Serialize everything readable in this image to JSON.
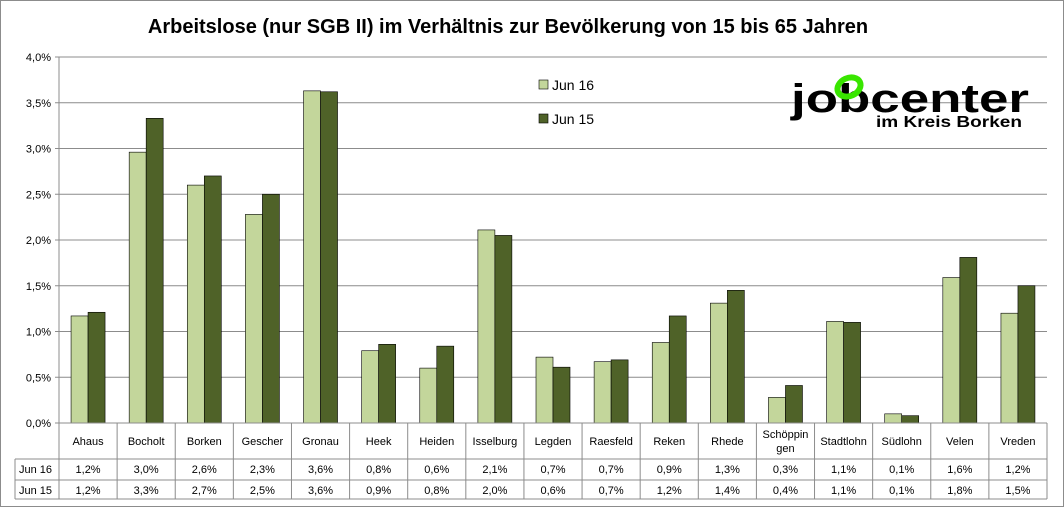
{
  "chart_data": {
    "type": "bar",
    "title": "Arbeitslose (nur SGB II) im Verhältnis zur Bevölkerung von 15 bis 65 Jahren",
    "categories": [
      "Ahaus",
      "Bocholt",
      "Borken",
      "Gescher",
      "Gronau",
      "Heek",
      "Heiden",
      "Isselburg",
      "Legden",
      "Raesfeld",
      "Reken",
      "Rhede",
      "Schöppin-gen",
      "Stadtlohn",
      "Südlohn",
      "Velen",
      "Vreden"
    ],
    "series": [
      {
        "name": "Jun 16",
        "color": "#c3d69b",
        "values": [
          1.17,
          2.96,
          2.6,
          2.28,
          3.63,
          0.79,
          0.6,
          2.11,
          0.72,
          0.67,
          0.88,
          1.31,
          0.28,
          1.11,
          0.1,
          1.59,
          1.2
        ],
        "labels": [
          "1,2%",
          "3,0%",
          "2,6%",
          "2,3%",
          "3,6%",
          "0,8%",
          "0,6%",
          "2,1%",
          "0,7%",
          "0,7%",
          "0,9%",
          "1,3%",
          "0,3%",
          "1,1%",
          "0,1%",
          "1,6%",
          "1,2%"
        ]
      },
      {
        "name": "Jun 15",
        "color": "#4f6228",
        "values": [
          1.21,
          3.33,
          2.7,
          2.5,
          3.62,
          0.86,
          0.84,
          2.05,
          0.61,
          0.69,
          1.17,
          1.45,
          0.41,
          1.1,
          0.08,
          1.81,
          1.5
        ],
        "labels": [
          "1,2%",
          "3,3%",
          "2,7%",
          "2,5%",
          "3,6%",
          "0,9%",
          "0,8%",
          "2,0%",
          "0,6%",
          "0,7%",
          "1,2%",
          "1,4%",
          "0,4%",
          "1,1%",
          "0,1%",
          "1,8%",
          "1,5%"
        ]
      }
    ],
    "ylim": [
      0,
      4
    ],
    "yticks": [
      "0,0%",
      "0,5%",
      "1,0%",
      "1,5%",
      "2,0%",
      "2,5%",
      "3,0%",
      "3,5%",
      "4,0%"
    ],
    "ytick_values": [
      0,
      0.5,
      1,
      1.5,
      2,
      2.5,
      3,
      3.5,
      4
    ],
    "grid": true,
    "legend_position": "top-center",
    "data_table": true,
    "xlabel": "",
    "ylabel": ""
  },
  "logo": {
    "text_main": "jobcenter",
    "text_sub": "im Kreis Borken",
    "accent_color": "#39e600"
  }
}
